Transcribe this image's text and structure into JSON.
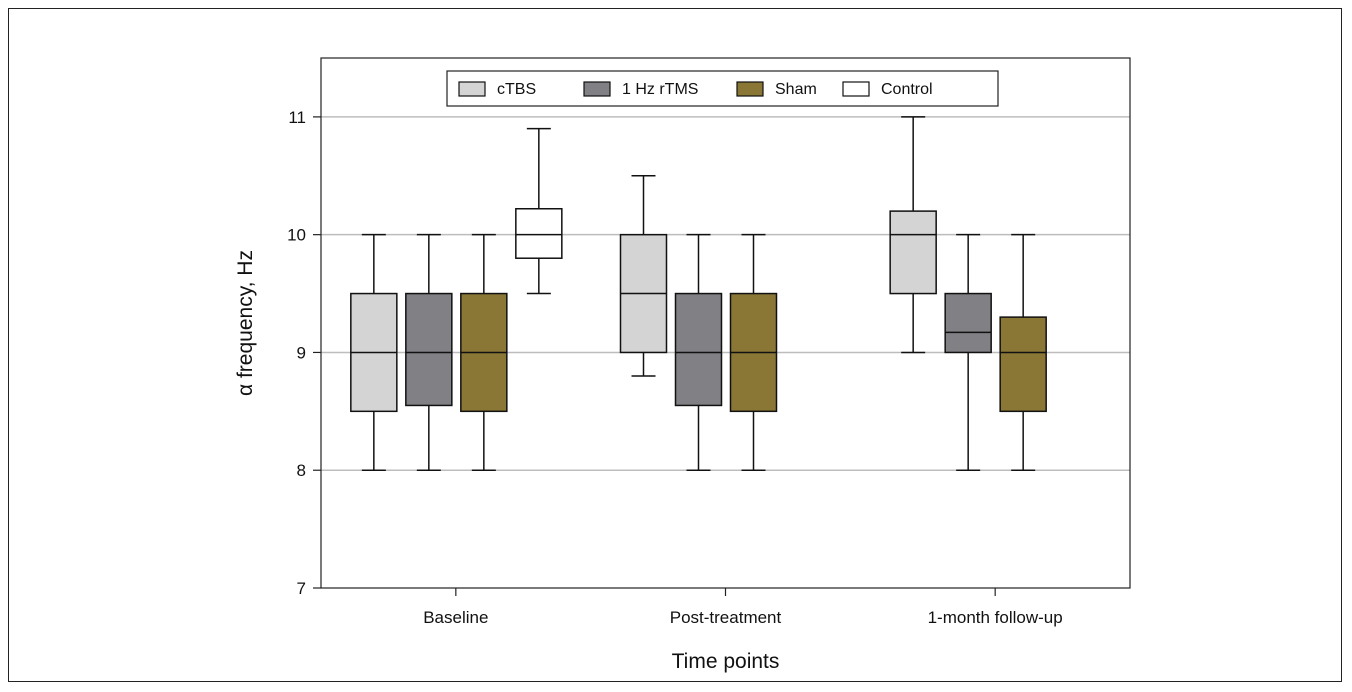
{
  "chart_data": {
    "type": "box",
    "title": "",
    "xlabel": "Time points",
    "ylabel": "α frequency, Hz",
    "ylim": [
      7,
      11.5
    ],
    "yticks": [
      7,
      8,
      9,
      10,
      11
    ],
    "grid": true,
    "legend_position": "top-center",
    "categories": [
      "Baseline",
      "Post-treatment",
      "1-month follow-up"
    ],
    "series": [
      {
        "name": "cTBS",
        "color": "#d4d4d4",
        "boxes": [
          {
            "min": 8,
            "q1": 8.5,
            "median": 9,
            "q3": 9.5,
            "max": 10
          },
          {
            "min": 8.8,
            "q1": 9,
            "median": 9.5,
            "q3": 10,
            "max": 10.5
          },
          {
            "min": 9,
            "q1": 9.5,
            "median": 10,
            "q3": 10.2,
            "max": 11
          }
        ]
      },
      {
        "name": "1 Hz rTMS",
        "color": "#808085",
        "boxes": [
          {
            "min": 8,
            "q1": 8.55,
            "median": 9,
            "q3": 9.5,
            "max": 10
          },
          {
            "min": 8,
            "q1": 8.55,
            "median": 9,
            "q3": 9.5,
            "max": 10
          },
          {
            "min": 8,
            "q1": 9,
            "median": 9.17,
            "q3": 9.5,
            "max": 10
          }
        ]
      },
      {
        "name": "Sham",
        "color": "#8b7735",
        "boxes": [
          {
            "min": 8,
            "q1": 8.5,
            "median": 9,
            "q3": 9.5,
            "max": 10
          },
          {
            "min": 8,
            "q1": 8.5,
            "median": 9,
            "q3": 9.5,
            "max": 10
          },
          {
            "min": 8,
            "q1": 8.5,
            "median": 9,
            "q3": 9.3,
            "max": 10
          }
        ]
      },
      {
        "name": "Control",
        "color": "#ffffff",
        "boxes": [
          {
            "min": 9.5,
            "q1": 9.8,
            "median": 10,
            "q3": 10.22,
            "max": 10.9
          },
          null,
          null
        ]
      }
    ]
  }
}
